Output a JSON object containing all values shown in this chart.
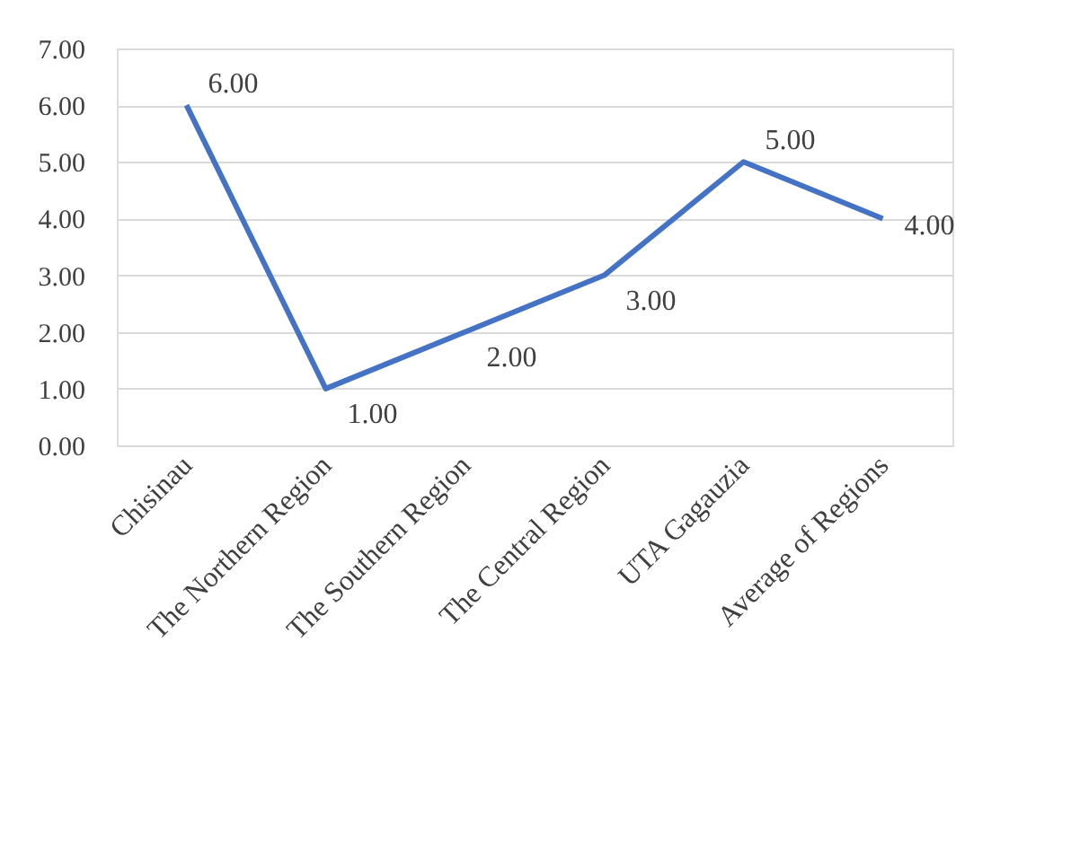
{
  "chart_data": {
    "type": "line",
    "categories": [
      "Chisinau",
      "The Northern Region",
      "The Southern Region",
      "The Central Region",
      "UTA Gagauzia",
      "Average of Regions"
    ],
    "series": [
      {
        "color": "#4472c4",
        "values": [
          6,
          1,
          2,
          3,
          5,
          4
        ],
        "value_labels": [
          "6.00",
          "1.00",
          "2.00",
          "3.00",
          "5.00",
          "4.00"
        ]
      }
    ],
    "ylim": [
      0,
      7
    ],
    "yticks": [
      {
        "value": 0,
        "label": "0.00"
      },
      {
        "value": 1,
        "label": "1.00"
      },
      {
        "value": 2,
        "label": "2.00"
      },
      {
        "value": 3,
        "label": "3.00"
      },
      {
        "value": 4,
        "label": "4.00"
      },
      {
        "value": 5,
        "label": "5.00"
      },
      {
        "value": 6,
        "label": "6.00"
      },
      {
        "value": 7,
        "label": "7.00"
      }
    ],
    "grid": "y",
    "marker": "none",
    "line_style": "solid",
    "legend": false
  }
}
